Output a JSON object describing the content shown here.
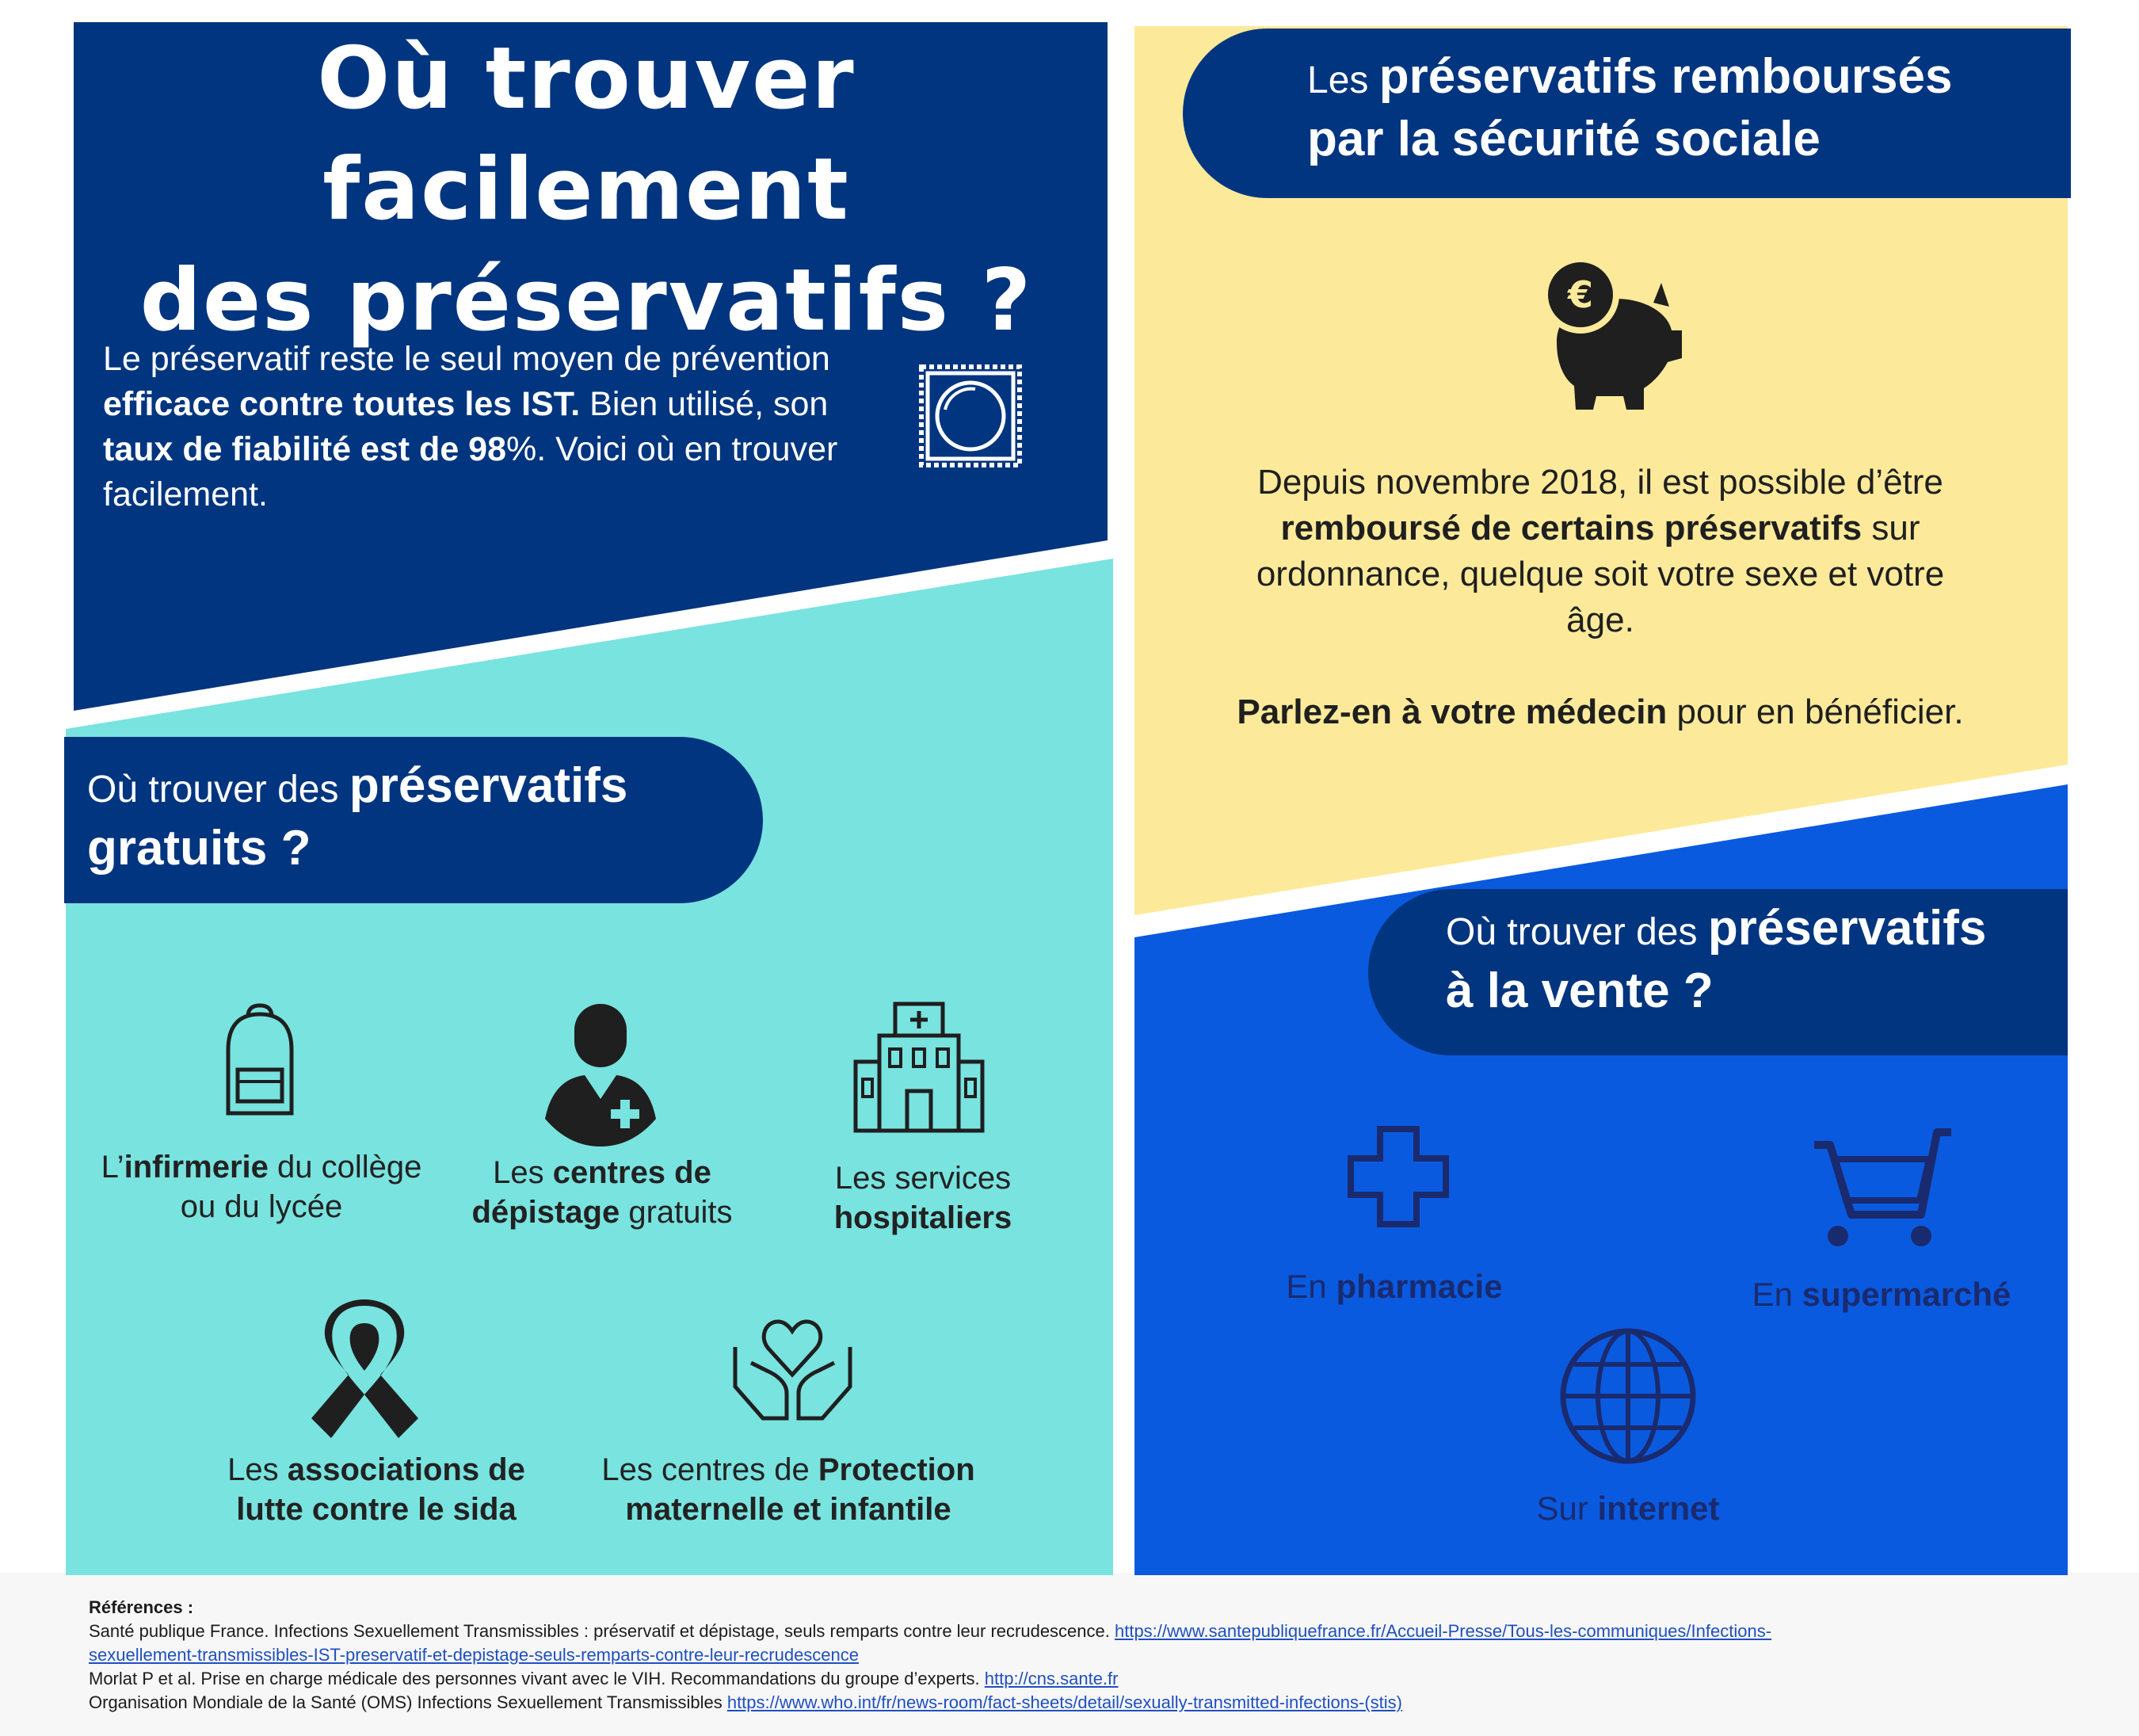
{
  "colors": {
    "navy": "#01357f",
    "turquoise": "#79e3df",
    "yellow": "#fcea9a",
    "bright_blue": "#0a5ae0",
    "pill_navy": "#01357f",
    "icon_dark": "#1f1f1f",
    "icon_blue": "#1a2a6e"
  },
  "title": {
    "line1": "Où trouver facilement",
    "line2": "des préservatifs ?"
  },
  "intro": {
    "t1": "Le préservatif reste le seul moyen de prévention ",
    "b1": "efficace contre toutes les IST.",
    "t2": " Bien utilisé, son ",
    "b2": "taux de fiabilité est de 98",
    "t3": "%. Voici où en trouver facilement.",
    "icon": "condom-package-icon"
  },
  "free": {
    "pill_light": "Où trouver des ",
    "pill_bold1": "préservatifs",
    "pill_bold2": "gratuits ?",
    "items": [
      {
        "icon": "backpack-icon",
        "pre": "L’",
        "bold": "infirmerie",
        "post": " du collège",
        "line2": "ou du lycée"
      },
      {
        "icon": "doctor-icon",
        "pre": "Les ",
        "bold": "centres de",
        "bold2": "dépistage",
        "post": " gratuits"
      },
      {
        "icon": "hospital-icon",
        "pre": "Les services",
        "bold": "hospitaliers"
      },
      {
        "icon": "aids-ribbon-icon",
        "pre": "Les ",
        "bold": "associations de",
        "bold2": "lutte contre le sida"
      },
      {
        "icon": "hands-heart-icon",
        "pre": "Les centres de ",
        "bold": "Protection",
        "bold2": "maternelle et infantile"
      }
    ]
  },
  "reimbursed": {
    "pill_light": "Les ",
    "pill_bold1": "préservatifs remboursés",
    "pill_bold2": "par la sécurité sociale",
    "icon": "piggy-bank-euro-icon",
    "p1_t1": "Depuis novembre 2018, il est possible d’être",
    "p1_b1": "remboursé de certains préservatifs",
    "p1_t2": " sur",
    "p1_t3": "ordonnance, quelque soit votre sexe et votre",
    "p1_t4": "âge.",
    "p2_b": "Parlez-en à votre médecin",
    "p2_t": " pour en bénéficier."
  },
  "sale": {
    "pill_light": "Où trouver des ",
    "pill_bold1": "préservatifs",
    "pill_bold2": "à la vente ?",
    "items": [
      {
        "icon": "pharmacy-cross-icon",
        "pre": "En ",
        "bold": "pharmacie"
      },
      {
        "icon": "shopping-cart-icon",
        "pre": "En ",
        "bold": "supermarché"
      },
      {
        "icon": "globe-icon",
        "pre": "Sur ",
        "bold": "internet"
      }
    ]
  },
  "references": {
    "heading": "Références :",
    "r1_text": "Santé publique France. Infections Sexuellement Transmissibles : préservatif et dépistage, seuls remparts contre leur recrudescence. ",
    "r1_link1": "https://www.santepubliquefrance.fr/Accueil-Presse/Tous-les-communiques/Infections-",
    "r1_link2": "sexuellement-transmissibles-IST-preservatif-et-depistage-seuls-remparts-contre-leur-recrudescence",
    "r2_text": "Morlat P et al. Prise en charge médicale des personnes vivant avec le VIH. Recommandations du groupe d’experts. ",
    "r2_link": "http://cns.sante.fr",
    "r3_text": "Organisation Mondiale de la Santé (OMS) Infections Sexuellement Transmissibles ",
    "r3_link": "https://www.who.int/fr/news-room/fact-sheets/detail/sexually-transmitted-infections-(stis)"
  }
}
